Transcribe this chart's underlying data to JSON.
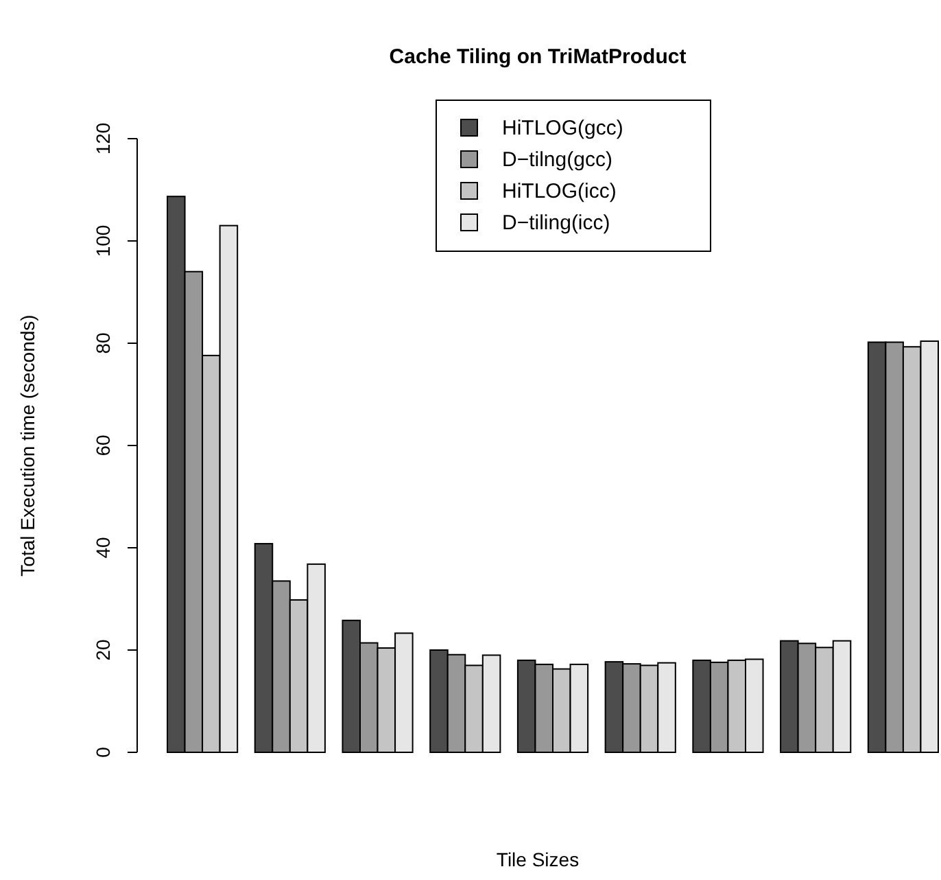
{
  "chart_data": {
    "type": "bar",
    "title": "Cache Tiling on TriMatProduct",
    "xlabel": "Tile Sizes",
    "ylabel": "Total Execution time (seconds)",
    "categories": [
      null,
      null,
      null,
      null,
      null,
      null,
      null,
      null,
      null
    ],
    "series": [
      {
        "name": "HiTLOG(gcc)",
        "color": "#4d4d4d",
        "values": [
          108.7,
          40.8,
          25.8,
          20.0,
          18.0,
          17.7,
          18.0,
          21.8,
          80.2
        ]
      },
      {
        "name": "D−tilng(gcc)",
        "color": "#989898",
        "values": [
          94,
          33.5,
          21.4,
          19.1,
          17.2,
          17.3,
          17.6,
          21.3,
          80.2
        ]
      },
      {
        "name": "HiTLOG(icc)",
        "color": "#c4c4c4",
        "values": [
          77.6,
          29.8,
          20.4,
          17.0,
          16.3,
          17.0,
          18.0,
          20.5,
          79.3
        ]
      },
      {
        "name": "D−tiling(icc)",
        "color": "#e6e6e6",
        "values": [
          103,
          36.8,
          23.3,
          19.0,
          17.2,
          17.5,
          18.2,
          21.8,
          80.4
        ]
      }
    ],
    "ylim": [
      0,
      120
    ],
    "yticks": [
      0,
      20,
      40,
      60,
      80,
      100,
      120
    ],
    "legend": "top",
    "grid": false
  }
}
